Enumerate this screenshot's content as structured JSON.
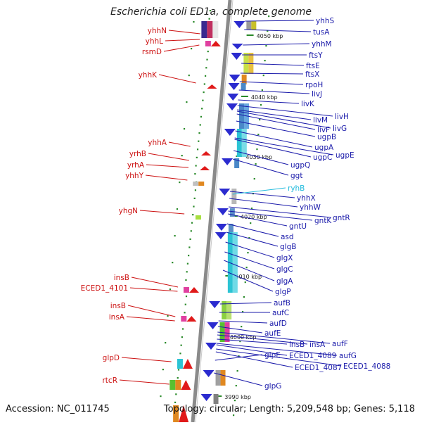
{
  "title": "Escherichia coli ED1a, complete genome",
  "footer": {
    "accession": "Accession: NC_011745",
    "summary": "Topology: circular; Length: 5,209,548 bp; Genes: 5,118"
  },
  "colors": {
    "forward_gene_label": "#1a1aaa",
    "reverse_gene_label": "#cc1111",
    "rna_gene_label": "#22bbdd",
    "backbone": "#8a8a8a",
    "tick": "#2a8a2a"
  },
  "position_markers": [
    "4050 kbp",
    "4040 kbp",
    "4030 kbp",
    "4020 kbp",
    "4010 kbp",
    "4000 kbp",
    "3990 kbp"
  ],
  "forward_genes": [
    "yhhS",
    "tusA",
    "yhhM",
    "ftsY",
    "ftsE",
    "ftsX",
    "rpoH",
    "livJ",
    "livK",
    "livH",
    "livM",
    "livG",
    "livF",
    "ugpB",
    "ugpA",
    "ugpE",
    "ugpC",
    "ugpQ",
    "ggt",
    "yhhX",
    "yhhW",
    "gntR",
    "gntK",
    "gntU",
    "asd",
    "glgB",
    "glgX",
    "glgC",
    "glgA",
    "glgP",
    "aufB",
    "aufC",
    "aufD",
    "aufE",
    "aufF",
    "insA",
    "insB",
    "aufG",
    "ECED1_4089",
    "ECED1_4088",
    "ECED1_4087",
    "glpE",
    "glpG"
  ],
  "rna_genes": [
    "ryhB"
  ],
  "reverse_genes": [
    "yhhN",
    "yhhL",
    "rsmD",
    "yhhK",
    "yhhA",
    "yrhB",
    "yrhA",
    "yhhY",
    "yhgN",
    "insB",
    "ECED1_4101",
    "insB",
    "insA",
    "glpD",
    "rtcR"
  ]
}
